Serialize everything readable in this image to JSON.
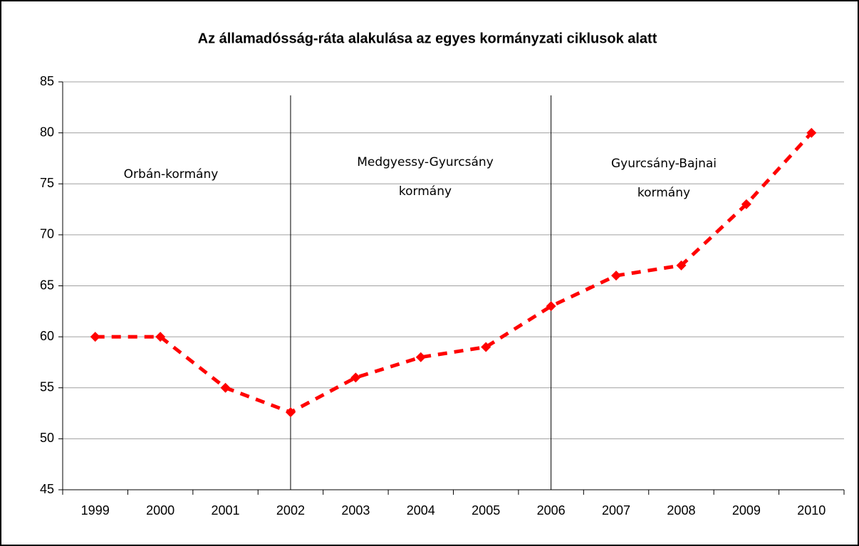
{
  "chart_data": {
    "type": "line",
    "title": "Az államadósság-ráta alakulása az egyes kormányzati ciklusok alatt",
    "categories": [
      "1999",
      "2000",
      "2001",
      "2002",
      "2003",
      "2004",
      "2005",
      "2006",
      "2007",
      "2008",
      "2009",
      "2010"
    ],
    "series": [
      {
        "name": null,
        "color": "#ff0000",
        "values": [
          60,
          60,
          55,
          52.6,
          56,
          58,
          59,
          63,
          66,
          67,
          73,
          80
        ]
      }
    ],
    "ylim": [
      45,
      85
    ],
    "yticks": [
      45,
      50,
      55,
      60,
      65,
      70,
      75,
      80,
      85
    ],
    "grid": true,
    "annotations": [
      [
        "Orbán-kormány"
      ],
      [
        "Medgyessy-Gyurcsány",
        "kormány"
      ],
      [
        "Gyurcsány-Bajnai",
        "kormány"
      ]
    ]
  }
}
